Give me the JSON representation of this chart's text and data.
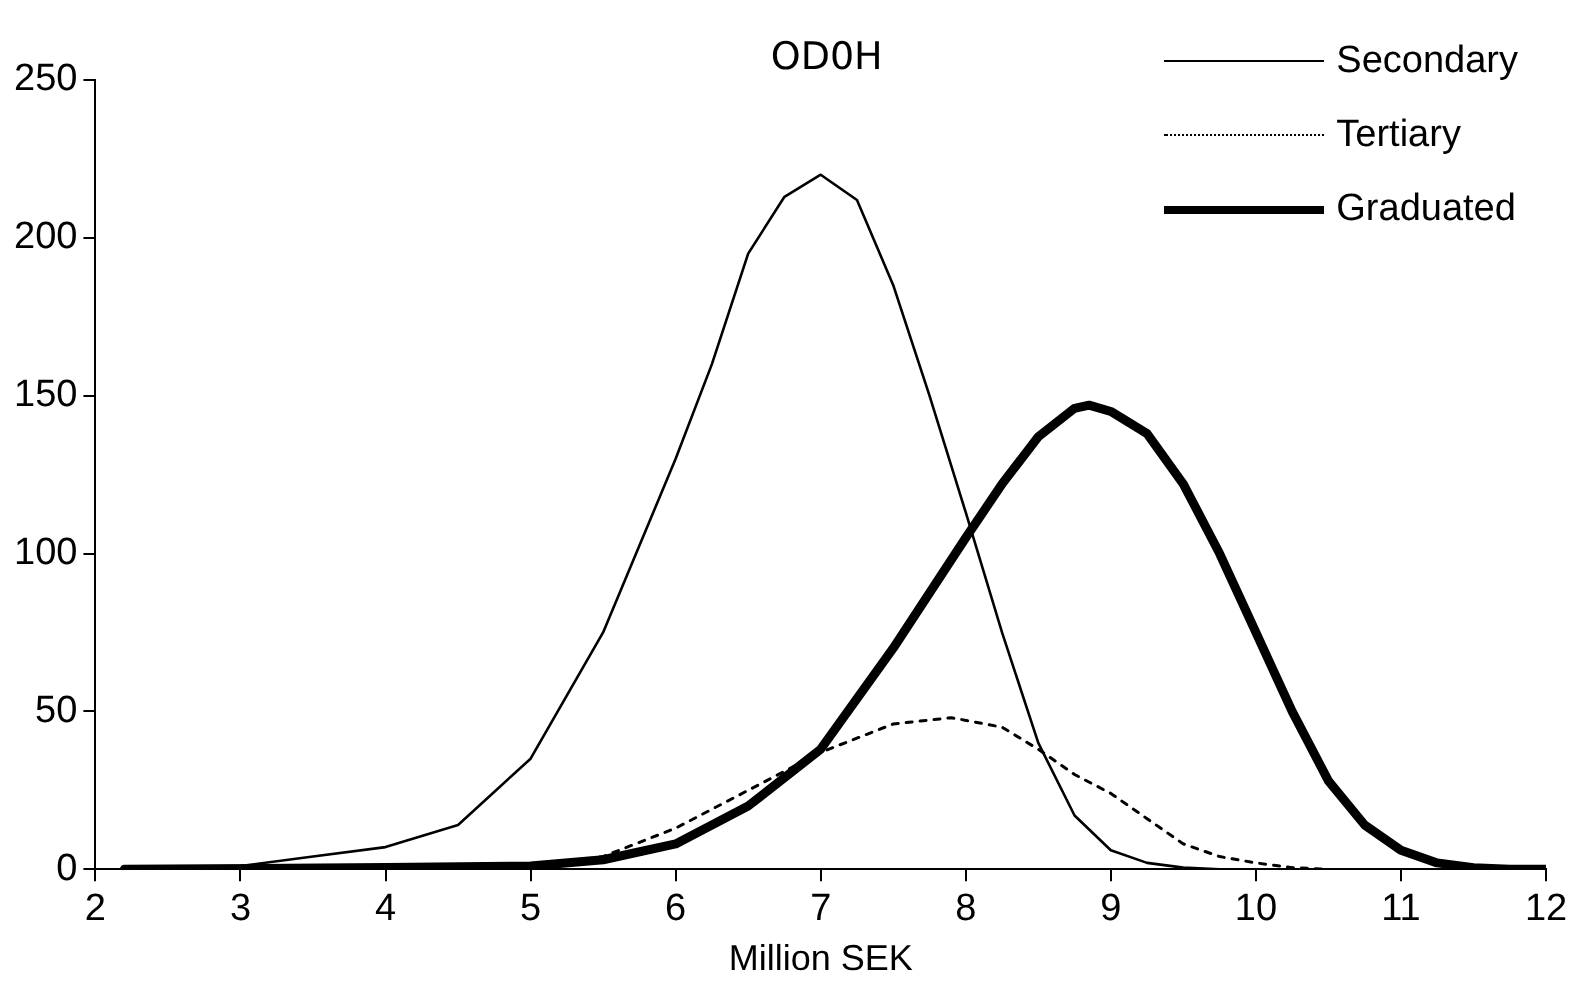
{
  "chart_data": {
    "type": "line",
    "title": "OD0H",
    "xlabel": "Million SEK",
    "xlim": [
      2,
      12
    ],
    "xticks": [
      2,
      3,
      4,
      5,
      6,
      7,
      8,
      9,
      10,
      11,
      12
    ],
    "ylim": [
      0,
      250
    ],
    "yticks": [
      0,
      50,
      100,
      150,
      200,
      250
    ],
    "grid": false,
    "legend": "top right",
    "marker": "none",
    "series": [
      {
        "name": "Secondary",
        "color": "#000000",
        "line_style": "solid",
        "x": [
          2.2,
          3,
          3.5,
          4,
          4.5,
          5,
          5.5,
          6,
          6.25,
          6.5,
          6.75,
          7,
          7.25,
          7.5,
          7.75,
          8,
          8.25,
          8.5,
          8.75,
          9,
          9.25,
          9.5,
          9.75
        ],
        "values": [
          0,
          1,
          4,
          7,
          14,
          35,
          75,
          130,
          160,
          195,
          213,
          220,
          212,
          185,
          150,
          113,
          75,
          40,
          17,
          6,
          2,
          0.5,
          0
        ]
      },
      {
        "name": "Tertiary",
        "color": "#000000",
        "line_style": "dotted",
        "x": [
          2.2,
          5,
          5.5,
          6,
          6.5,
          7,
          7.5,
          7.9,
          8.25,
          8.5,
          8.75,
          9,
          9.25,
          9.5,
          9.75,
          10,
          10.25,
          10.5
        ],
        "values": [
          0,
          0.5,
          4,
          13,
          25,
          37,
          46,
          48,
          45,
          38,
          30,
          24,
          16,
          8,
          4,
          2,
          0.5,
          0
        ]
      },
      {
        "name": "Graduated",
        "color": "#000000",
        "line_style": "solid",
        "x": [
          2.2,
          4,
          5,
          5.5,
          6,
          6.5,
          7,
          7.5,
          8,
          8.25,
          8.5,
          8.75,
          8.85,
          9,
          9.25,
          9.5,
          9.75,
          10,
          10.25,
          10.5,
          10.75,
          11,
          11.25,
          11.5,
          11.75,
          12
        ],
        "values": [
          0,
          0.5,
          1,
          3,
          8,
          20,
          38,
          70,
          105,
          122,
          137,
          146,
          147,
          145,
          138,
          122,
          100,
          75,
          50,
          28,
          14,
          6,
          2,
          0.5,
          0,
          0
        ]
      }
    ]
  }
}
